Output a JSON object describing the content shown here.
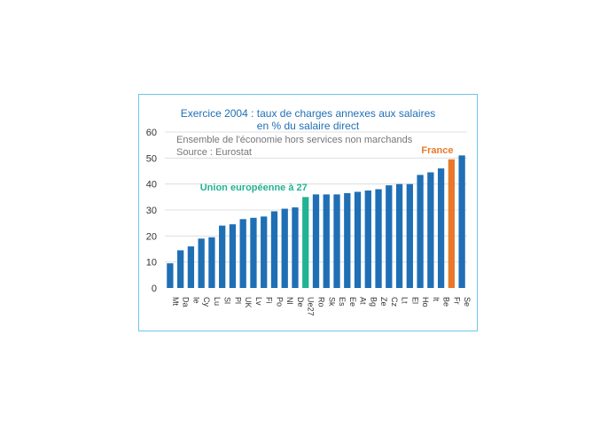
{
  "chart_data": {
    "type": "bar",
    "title": "Exercice 2004 : taux de charges annexes aux salaires",
    "title_line2": "en % du salaire direct",
    "subtitle": "Ensemble de l'économie hors services non marchands",
    "source": "Source : Eurostat",
    "categories": [
      "Mt",
      "Da",
      "Ie",
      "Cy",
      "Lu",
      "Sl",
      "Pl",
      "UK",
      "Lv",
      "Fi",
      "Po",
      "Nl",
      "De",
      "Ue27",
      "Ro",
      "Sk",
      "Es",
      "Ee",
      "At",
      "Bg",
      "Ze",
      "Cz",
      "Lt",
      "El",
      "Ho",
      "It",
      "Be",
      "Fr",
      "Se"
    ],
    "values": [
      9.5,
      14.5,
      16,
      19,
      19.5,
      24,
      24.5,
      26.5,
      27,
      27.5,
      29.5,
      30.5,
      31,
      35,
      36,
      36,
      36,
      36.5,
      37,
      37.5,
      38,
      39.5,
      40,
      40,
      43.5,
      44.5,
      46,
      49.5,
      51
    ],
    "ylim": [
      0,
      60
    ],
    "yticks": [
      0,
      10,
      20,
      30,
      40,
      50,
      60
    ],
    "grid": true,
    "colors": {
      "default": "#1f6fb5",
      "Ue27": "#22b394",
      "Fr": "#e8792a"
    },
    "annotations": [
      {
        "text": "Union européenne à 27",
        "target": "Ue27",
        "color": "#22b394"
      },
      {
        "text": "France",
        "target": "Fr",
        "color": "#e8792a"
      }
    ]
  }
}
